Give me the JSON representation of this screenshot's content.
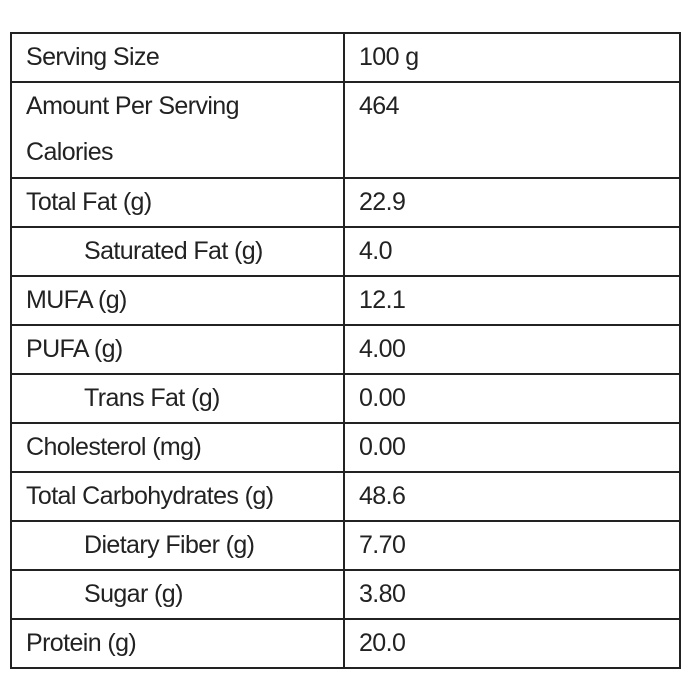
{
  "table": {
    "rows": [
      [
        "Serving Size",
        "100 g"
      ],
      [
        "Amount Per Serving\nCalories",
        "464"
      ],
      [
        "Total Fat (g)",
        "22.9"
      ],
      [
        "Saturated Fat (g)",
        "4.0"
      ],
      [
        "MUFA (g)",
        "12.1"
      ],
      [
        "PUFA (g)",
        "4.00"
      ],
      [
        "Trans Fat (g)",
        "0.00"
      ],
      [
        "Cholesterol (mg)",
        "0.00"
      ],
      [
        "Total Carbohydrates (g)",
        "48.6"
      ],
      [
        "Dietary Fiber (g)",
        "7.70"
      ],
      [
        "Sugar (g)",
        "3.80"
      ],
      [
        "Protein (g)",
        "20.0"
      ]
    ]
  }
}
